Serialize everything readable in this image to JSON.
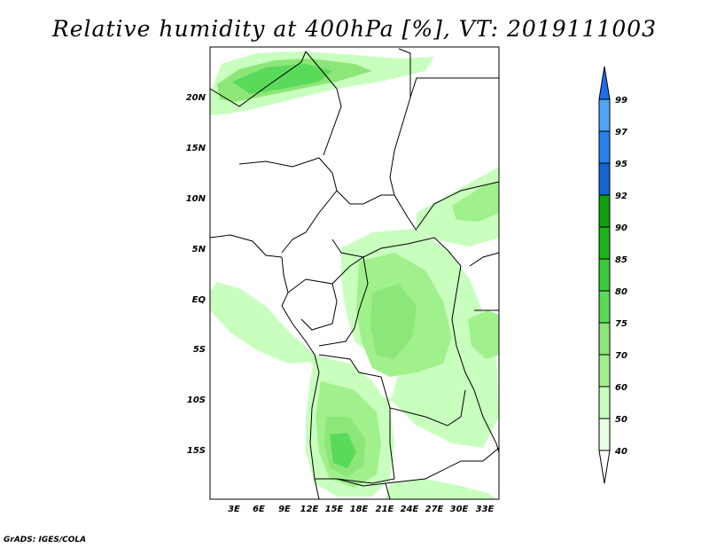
{
  "title": "Relative humidity at 400hPa [%], VT: 2019111003",
  "credit": "GrADS: IGES/COLA",
  "lat_labels": [
    "20N",
    "15N",
    "10N",
    "5N",
    "EQ",
    "5S",
    "10S",
    "15S"
  ],
  "lon_labels": [
    "3E",
    "6E",
    "9E",
    "12E",
    "15E",
    "18E",
    "21E",
    "24E",
    "27E",
    "30E",
    "33E"
  ],
  "colorbar": {
    "levels": [
      "40",
      "50",
      "60",
      "70",
      "75",
      "80",
      "85",
      "90",
      "92",
      "95",
      "97",
      "99"
    ],
    "colors": [
      "#ffffff",
      "#e6ffe1",
      "#c8ffbe",
      "#a0f08c",
      "#8ce678",
      "#5ada5a",
      "#3cc83c",
      "#1eb41e",
      "#0fa00f",
      "#1464d2",
      "#2882f0",
      "#50a5f5",
      "#1e6eeb"
    ]
  },
  "colors": {
    "humid_light": "#e6ffe1",
    "humid_mid": "#c8ffbe",
    "humid_dark": "#a0f08c",
    "humid_darker": "#8ce678",
    "humid_darkest": "#5ada5a",
    "border": "#000000"
  }
}
